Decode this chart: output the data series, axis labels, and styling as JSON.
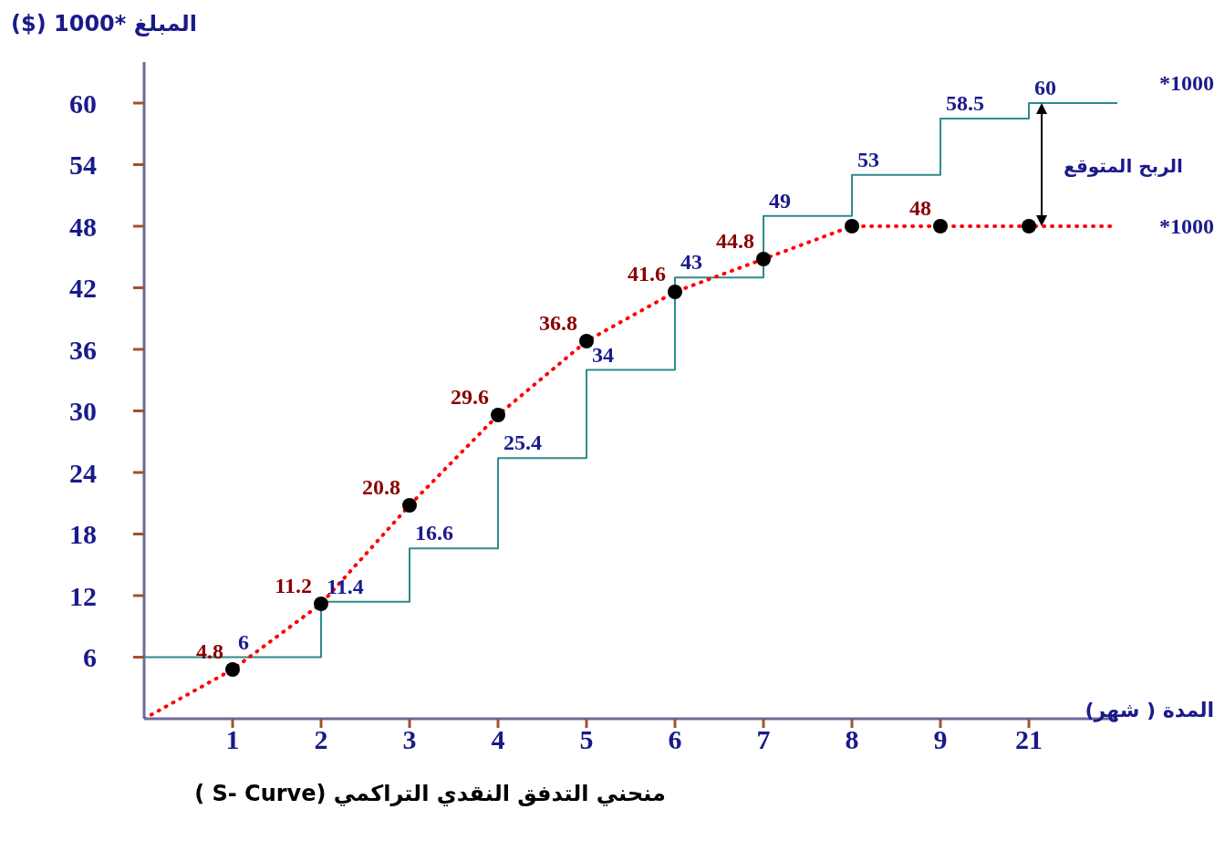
{
  "chart_data": {
    "type": "line",
    "title": "منحني التدفق النقدي التراكمي (S- Curve )",
    "xlabel": "المدة ( شهر)",
    "ylabel": "المبلغ *1000 ($)",
    "categories": [
      null,
      "1",
      "2",
      "3",
      "4",
      "5",
      "6",
      "7",
      "8",
      "9",
      "21",
      null
    ],
    "series": [
      {
        "type": "step",
        "color": "#2e8b8b",
        "values": [
          6,
          6,
          11.4,
          16.6,
          25.4,
          34,
          43,
          49,
          53,
          58.5,
          60,
          60
        ],
        "value_labels": [
          null,
          "6",
          "11.4",
          "16.6",
          "25.4",
          "34",
          "43",
          "49",
          "53",
          "58.5",
          "60",
          null
        ]
      },
      {
        "color": "#ff0000",
        "line_style": "dotted",
        "marker": "circle",
        "values": [
          0,
          4.8,
          11.2,
          20.8,
          29.6,
          36.8,
          41.6,
          44.8,
          48,
          48,
          48,
          48
        ],
        "value_labels": [
          null,
          "4.8",
          "11.2",
          "20.8",
          "29.6",
          "36.8",
          "41.6",
          "44.8",
          null,
          "48",
          null,
          null
        ]
      }
    ],
    "ylim": [
      0,
      64
    ],
    "yticks": [
      6,
      12,
      18,
      24,
      30,
      36,
      42,
      48,
      54,
      60
    ],
    "annotations": [
      "*1000",
      "الربح المتوقع",
      "*1000"
    ]
  }
}
